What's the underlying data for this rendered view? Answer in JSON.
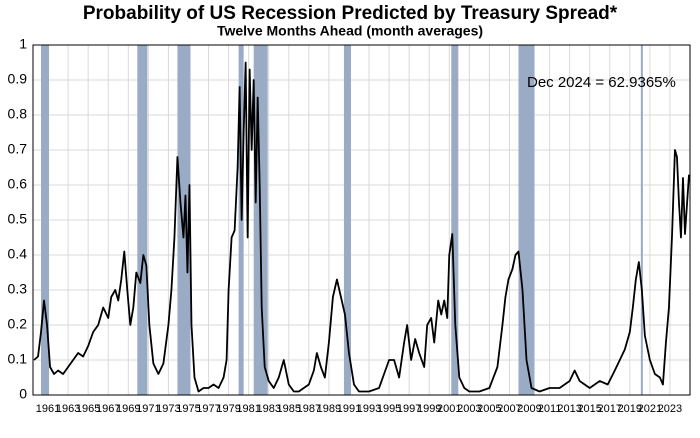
{
  "chart_data": {
    "type": "line",
    "title": "Probability of US Recession Predicted by Treasury Spread*",
    "subtitle": "Twelve Months Ahead (month averages)",
    "annotation": "Dec 2024 = 62.9365%",
    "x": [
      1959.6,
      1960.0,
      1960.3,
      1960.6,
      1960.9,
      1961.2,
      1961.6,
      1962.0,
      1962.5,
      1963.0,
      1963.5,
      1964.0,
      1964.5,
      1965.0,
      1965.5,
      1966.0,
      1966.5,
      1967.0,
      1967.3,
      1967.7,
      1968.0,
      1968.3,
      1968.6,
      1968.9,
      1969.2,
      1969.5,
      1969.8,
      1970.2,
      1970.5,
      1970.8,
      1971.1,
      1971.5,
      1972.0,
      1972.5,
      1973.0,
      1973.3,
      1973.6,
      1973.9,
      1974.2,
      1974.5,
      1974.7,
      1974.9,
      1975.1,
      1975.3,
      1975.6,
      1976.0,
      1976.5,
      1977.0,
      1977.5,
      1978.0,
      1978.5,
      1978.8,
      1979.0,
      1979.3,
      1979.6,
      1979.9,
      1980.1,
      1980.3,
      1980.5,
      1980.7,
      1980.9,
      1981.1,
      1981.3,
      1981.5,
      1981.7,
      1981.9,
      1982.1,
      1982.3,
      1982.6,
      1983.0,
      1983.5,
      1984.0,
      1984.5,
      1985.0,
      1985.5,
      1986.0,
      1986.5,
      1987.0,
      1987.5,
      1987.8,
      1988.2,
      1988.6,
      1989.0,
      1989.4,
      1989.8,
      1990.2,
      1990.6,
      1991.0,
      1991.5,
      1992.0,
      1993.0,
      1994.0,
      1994.5,
      1995.0,
      1995.5,
      1996.0,
      1996.5,
      1996.8,
      1997.2,
      1997.6,
      1998.0,
      1998.5,
      1998.8,
      1999.2,
      1999.5,
      1999.9,
      2000.2,
      2000.5,
      2000.8,
      2001.0,
      2001.3,
      2001.6,
      2002.0,
      2002.5,
      2003.0,
      2004.0,
      2005.0,
      2005.8,
      2006.3,
      2006.6,
      2006.9,
      2007.3,
      2007.6,
      2007.9,
      2008.3,
      2008.7,
      2009.2,
      2010.0,
      2011.0,
      2012.0,
      2012.5,
      2013.0,
      2013.5,
      2014.0,
      2015.0,
      2016.0,
      2016.8,
      2017.5,
      2018.0,
      2018.5,
      2019.0,
      2019.3,
      2019.6,
      2019.9,
      2020.2,
      2020.5,
      2021.0,
      2021.5,
      2022.0,
      2022.3,
      2022.6,
      2022.9,
      2023.2,
      2023.5,
      2023.7,
      2023.9,
      2024.1,
      2024.3,
      2024.5,
      2024.9
    ],
    "series": [
      {
        "color": "#000000",
        "values": [
          0.1,
          0.11,
          0.18,
          0.27,
          0.2,
          0.08,
          0.06,
          0.07,
          0.06,
          0.08,
          0.1,
          0.12,
          0.11,
          0.14,
          0.18,
          0.2,
          0.25,
          0.22,
          0.28,
          0.3,
          0.27,
          0.33,
          0.41,
          0.3,
          0.2,
          0.25,
          0.35,
          0.32,
          0.4,
          0.37,
          0.2,
          0.09,
          0.06,
          0.09,
          0.2,
          0.3,
          0.45,
          0.68,
          0.55,
          0.45,
          0.57,
          0.35,
          0.6,
          0.2,
          0.05,
          0.01,
          0.02,
          0.02,
          0.03,
          0.02,
          0.05,
          0.1,
          0.3,
          0.45,
          0.47,
          0.65,
          0.88,
          0.5,
          0.75,
          0.95,
          0.45,
          0.93,
          0.7,
          0.9,
          0.55,
          0.85,
          0.6,
          0.25,
          0.08,
          0.04,
          0.02,
          0.05,
          0.1,
          0.03,
          0.01,
          0.01,
          0.02,
          0.03,
          0.07,
          0.12,
          0.08,
          0.05,
          0.15,
          0.28,
          0.33,
          0.28,
          0.23,
          0.12,
          0.03,
          0.01,
          0.01,
          0.02,
          0.06,
          0.1,
          0.1,
          0.05,
          0.15,
          0.2,
          0.1,
          0.16,
          0.12,
          0.08,
          0.2,
          0.22,
          0.15,
          0.27,
          0.23,
          0.27,
          0.22,
          0.4,
          0.46,
          0.2,
          0.05,
          0.02,
          0.01,
          0.01,
          0.02,
          0.08,
          0.2,
          0.28,
          0.33,
          0.36,
          0.4,
          0.41,
          0.3,
          0.1,
          0.02,
          0.01,
          0.02,
          0.02,
          0.03,
          0.04,
          0.07,
          0.04,
          0.02,
          0.04,
          0.03,
          0.07,
          0.1,
          0.13,
          0.18,
          0.25,
          0.33,
          0.38,
          0.3,
          0.17,
          0.1,
          0.06,
          0.05,
          0.03,
          0.15,
          0.25,
          0.45,
          0.7,
          0.68,
          0.55,
          0.45,
          0.62,
          0.46,
          0.629365
        ]
      }
    ],
    "recessions": [
      [
        1960.3,
        1961.1
      ],
      [
        1969.9,
        1970.9
      ],
      [
        1973.9,
        1975.2
      ],
      [
        1980.0,
        1980.5
      ],
      [
        1981.5,
        1982.9
      ],
      [
        1990.5,
        1991.2
      ],
      [
        2001.2,
        2001.9
      ],
      [
        2007.9,
        2009.5
      ],
      [
        2020.1,
        2020.3
      ]
    ],
    "recession_color": "#9aabc6",
    "xlim": [
      1959.5,
      2025
    ],
    "xticks": [
      1961,
      1963,
      1965,
      1967,
      1969,
      1971,
      1973,
      1975,
      1977,
      1979,
      1981,
      1983,
      1985,
      1987,
      1989,
      1991,
      1993,
      1995,
      1997,
      1999,
      2001,
      2003,
      2005,
      2007,
      2009,
      2011,
      2013,
      2015,
      2017,
      2019,
      2021,
      2023
    ],
    "ylim": [
      0,
      1
    ],
    "yticks": [
      0,
      0.1,
      0.2,
      0.3,
      0.4,
      0.5,
      0.6,
      0.7,
      0.8,
      0.9,
      1
    ],
    "grid": true
  }
}
